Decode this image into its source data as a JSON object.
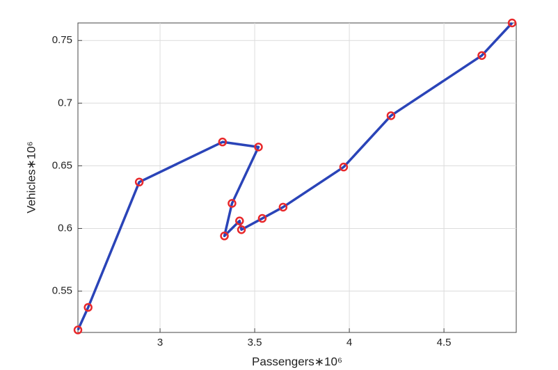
{
  "chart_data": {
    "type": "line",
    "xlabel": "Passengers∗10⁶",
    "ylabel": "Vehicles∗10⁶",
    "x": [
      2.566,
      2.62,
      2.89,
      3.33,
      3.52,
      3.38,
      3.34,
      3.42,
      3.43,
      3.54,
      3.65,
      3.97,
      4.22,
      4.7,
      4.86
    ],
    "series": [
      {
        "color": "#2a44b8",
        "marker_color": "#e8282b",
        "values": [
          0.519,
          0.537,
          0.637,
          0.669,
          0.665,
          0.62,
          0.594,
          0.606,
          0.599,
          0.608,
          0.617,
          0.649,
          0.69,
          0.738,
          0.764
        ]
      }
    ],
    "xlim": [
      2.566,
      4.882
    ],
    "ylim": [
      0.517,
      0.764
    ],
    "xticks": [
      3,
      3.5,
      4,
      4.5
    ],
    "yticks": [
      0.55,
      0.6,
      0.65,
      0.7,
      0.75
    ],
    "grid": true
  }
}
